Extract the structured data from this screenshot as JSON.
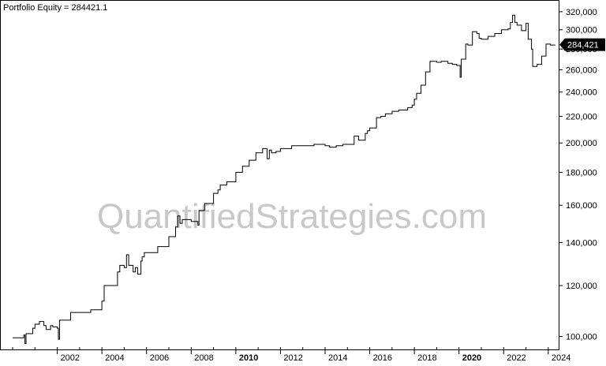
{
  "chart_data": {
    "type": "line",
    "title": "Portfolio Equity = 284421.1",
    "watermark": "QuantifiedStrategies.com",
    "y_scale": "log",
    "ylim": [
      96000,
      330000
    ],
    "xlim": [
      2000.0,
      2024.5
    ],
    "y_ticks": [
      {
        "value": 100000,
        "label": "100,000"
      },
      {
        "value": 120000,
        "label": "120,000"
      },
      {
        "value": 140000,
        "label": "140,000"
      },
      {
        "value": 160000,
        "label": "160,000"
      },
      {
        "value": 180000,
        "label": "180,000"
      },
      {
        "value": 200000,
        "label": "200,000"
      },
      {
        "value": 220000,
        "label": "220,000"
      },
      {
        "value": 240000,
        "label": "240,000"
      },
      {
        "value": 260000,
        "label": "260,000"
      },
      {
        "value": 280000,
        "label": "280,000"
      },
      {
        "value": 300000,
        "label": "300,000"
      },
      {
        "value": 320000,
        "label": "320,000"
      }
    ],
    "x_ticks": [
      {
        "value": 2002,
        "label": "2002",
        "bold": false
      },
      {
        "value": 2004,
        "label": "2004",
        "bold": false
      },
      {
        "value": 2006,
        "label": "2006",
        "bold": false
      },
      {
        "value": 2008,
        "label": "2008",
        "bold": false
      },
      {
        "value": 2010,
        "label": "2010",
        "bold": true
      },
      {
        "value": 2012,
        "label": "2012",
        "bold": false
      },
      {
        "value": 2014,
        "label": "2014",
        "bold": false
      },
      {
        "value": 2016,
        "label": "2016",
        "bold": false
      },
      {
        "value": 2018,
        "label": "2018",
        "bold": false
      },
      {
        "value": 2020,
        "label": "2020",
        "bold": true
      },
      {
        "value": 2022,
        "label": "2022",
        "bold": false
      },
      {
        "value": 2024,
        "label": "2024",
        "bold": false
      }
    ],
    "last_value_label": "284,421",
    "last_value": 284421,
    "line_color": "#000000",
    "label_bg_color": "#000000",
    "series": [
      {
        "x": [
          2000.0,
          2000.4,
          2000.5,
          2000.55,
          2000.6,
          2000.9,
          2001.0,
          2001.2,
          2001.4,
          2001.5,
          2001.7,
          2001.8,
          2002.0,
          2002.05,
          2002.1,
          2002.4,
          2002.6,
          2003.0,
          2003.5,
          2003.7,
          2004.0,
          2004.1,
          2004.5,
          2004.7,
          2004.8,
          2005.0,
          2005.1,
          2005.2,
          2005.4,
          2005.5,
          2005.6,
          2005.75,
          2005.8,
          2005.9,
          2006.0,
          2006.5,
          2007.0,
          2007.3,
          2007.4,
          2007.5,
          2007.6,
          2007.9,
          2008.0,
          2008.3,
          2008.35,
          2008.5,
          2008.6,
          2008.8,
          2009.0,
          2009.2,
          2009.3,
          2009.6,
          2010.0,
          2010.3,
          2010.6,
          2010.9,
          2011.2,
          2011.4,
          2011.5,
          2011.6,
          2011.8,
          2012.0,
          2012.3,
          2012.5,
          2012.7,
          2013.0,
          2013.5,
          2013.8,
          2014.0,
          2014.2,
          2014.5,
          2014.8,
          2015.0,
          2015.3,
          2015.5,
          2015.8,
          2015.9,
          2016.0,
          2016.3,
          2016.5,
          2016.7,
          2017.0,
          2017.3,
          2017.7,
          2017.9,
          2018.0,
          2018.1,
          2018.3,
          2018.5,
          2018.7,
          2018.9,
          2019.0,
          2019.2,
          2019.5,
          2019.7,
          2019.9,
          2020.05,
          2020.1,
          2020.3,
          2020.4,
          2020.6,
          2020.8,
          2020.9,
          2021.0,
          2021.3,
          2021.6,
          2021.9,
          2022.0,
          2022.1,
          2022.2,
          2022.3,
          2022.4,
          2022.5,
          2022.6,
          2022.8,
          2023.0,
          2023.1,
          2023.25,
          2023.3,
          2023.5,
          2023.7,
          2023.9,
          2024.1,
          2024.3
        ],
        "y": [
          99500,
          99500,
          100500,
          97500,
          101000,
          103000,
          104500,
          105500,
          104000,
          102500,
          104000,
          103500,
          103000,
          99000,
          106000,
          106000,
          109000,
          109000,
          110000,
          110000,
          113500,
          120000,
          120000,
          126000,
          129000,
          128000,
          134000,
          129000,
          126000,
          128000,
          125000,
          131000,
          133000,
          135000,
          135000,
          138000,
          143000,
          148000,
          154000,
          150000,
          152000,
          152000,
          151000,
          149000,
          157000,
          157000,
          161000,
          161000,
          167000,
          169000,
          172000,
          174000,
          180000,
          184000,
          188000,
          193000,
          196000,
          189000,
          195000,
          193000,
          194000,
          196000,
          196000,
          198000,
          198000,
          198000,
          199000,
          199000,
          198000,
          197000,
          198000,
          199000,
          199000,
          205000,
          202000,
          207000,
          209000,
          211000,
          219000,
          220000,
          222000,
          224000,
          225000,
          227000,
          229000,
          234000,
          239000,
          246000,
          258000,
          268000,
          268000,
          267000,
          268000,
          266000,
          265000,
          264000,
          253000,
          270000,
          285000,
          284000,
          298000,
          296000,
          291000,
          290000,
          293000,
          296000,
          300000,
          300000,
          300000,
          301000,
          308000,
          316000,
          308000,
          305000,
          299000,
          307000,
          290000,
          280000,
          263000,
          265000,
          273000,
          285000,
          284000,
          284421
        ]
      }
    ]
  }
}
